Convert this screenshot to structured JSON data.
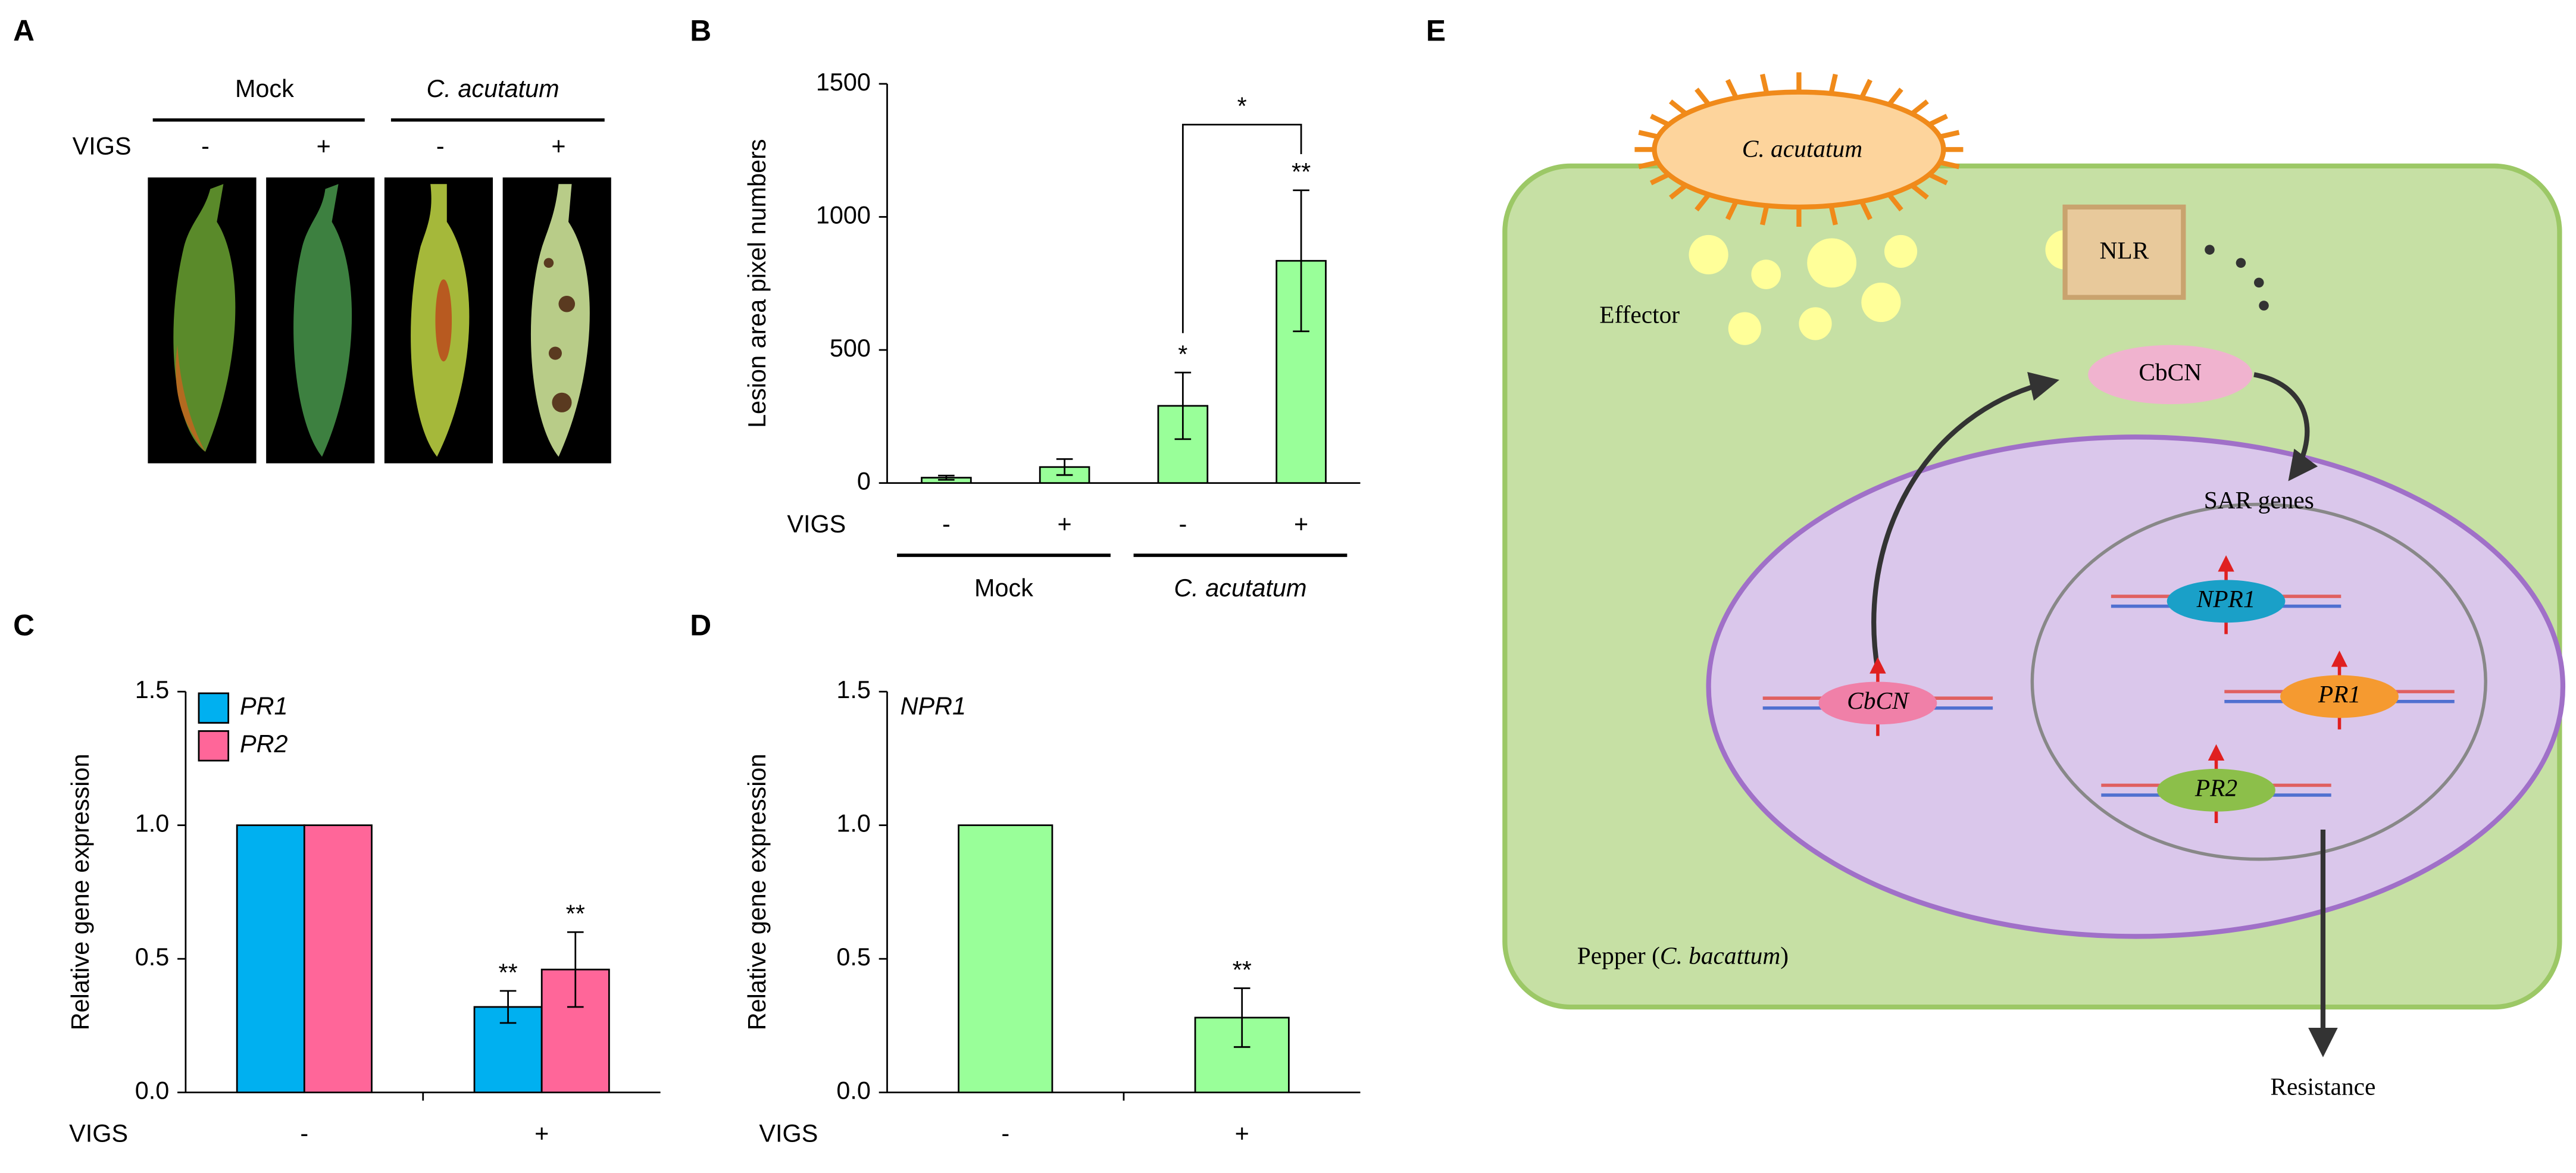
{
  "panel_labels": [
    "A",
    "B",
    "C",
    "D",
    "E"
  ],
  "photo_panel": {
    "groups": [
      "Mock",
      "C. acutatum"
    ],
    "row_label": "VIGS",
    "treatments": [
      "-",
      "+",
      "-",
      "+"
    ]
  },
  "chart_data": [
    {
      "type": "bar",
      "ylabel": "Lesion area pixel numbers",
      "xlabel": "VIGS",
      "categories": [
        "-",
        "+",
        "-",
        "+"
      ],
      "groups": [
        "Mock",
        "C. acutatum"
      ],
      "values": [
        20,
        60,
        290,
        835
      ],
      "errors": [
        8,
        30,
        125,
        265
      ],
      "annotations": [
        null,
        null,
        "*",
        "**"
      ],
      "bracket": {
        "from": 2,
        "to": 3,
        "label": "*"
      },
      "color": "#99ff99",
      "ylim": [
        0,
        1500
      ],
      "yticks": [
        0,
        500,
        1000,
        1500
      ]
    },
    {
      "type": "bar",
      "ylabel": "Relative gene expression",
      "xlabel": "VIGS",
      "categories": [
        "-",
        "+"
      ],
      "series": [
        {
          "name": "PR1",
          "color": "#00b0f0",
          "values": [
            1,
            0.32
          ],
          "errors": [
            null,
            0.06
          ],
          "annotations": [
            null,
            "**"
          ]
        },
        {
          "name": "PR2",
          "color": "#ff6699",
          "values": [
            1,
            0.46
          ],
          "errors": [
            null,
            0.14
          ],
          "annotations": [
            null,
            "**"
          ]
        }
      ],
      "legend": "upper left",
      "ylim": [
        0,
        1.5
      ],
      "yticks": [
        {
          "value": 0,
          "label": "0.0"
        },
        0.5,
        {
          "value": 1,
          "label": "1.0"
        },
        1.5
      ]
    },
    {
      "type": "bar",
      "ylabel": "Relative gene expression",
      "xlabel": "VIGS",
      "title": "NPR1",
      "categories": [
        "-",
        "+"
      ],
      "values": [
        1,
        0.28
      ],
      "errors": [
        null,
        0.11
      ],
      "annotations": [
        null,
        "**"
      ],
      "color": "#99ff99",
      "ylim": [
        0,
        1.5
      ],
      "yticks": [
        {
          "value": 0,
          "label": "0.0"
        },
        0.5,
        {
          "value": 1,
          "label": "1.0"
        },
        1.5
      ]
    }
  ],
  "diagram": {
    "pathogen": "C. acutatum",
    "receptor": "NLR",
    "effector": "Effector",
    "protein": "CbCN",
    "sar": "SAR genes",
    "genes": [
      "NPR1",
      "PR1",
      "PR2",
      "CbCN"
    ],
    "cell": {
      "prefix": "Pepper (",
      "species": "C. bacattum",
      "suffix": ")"
    },
    "outcome": "Resistance"
  }
}
